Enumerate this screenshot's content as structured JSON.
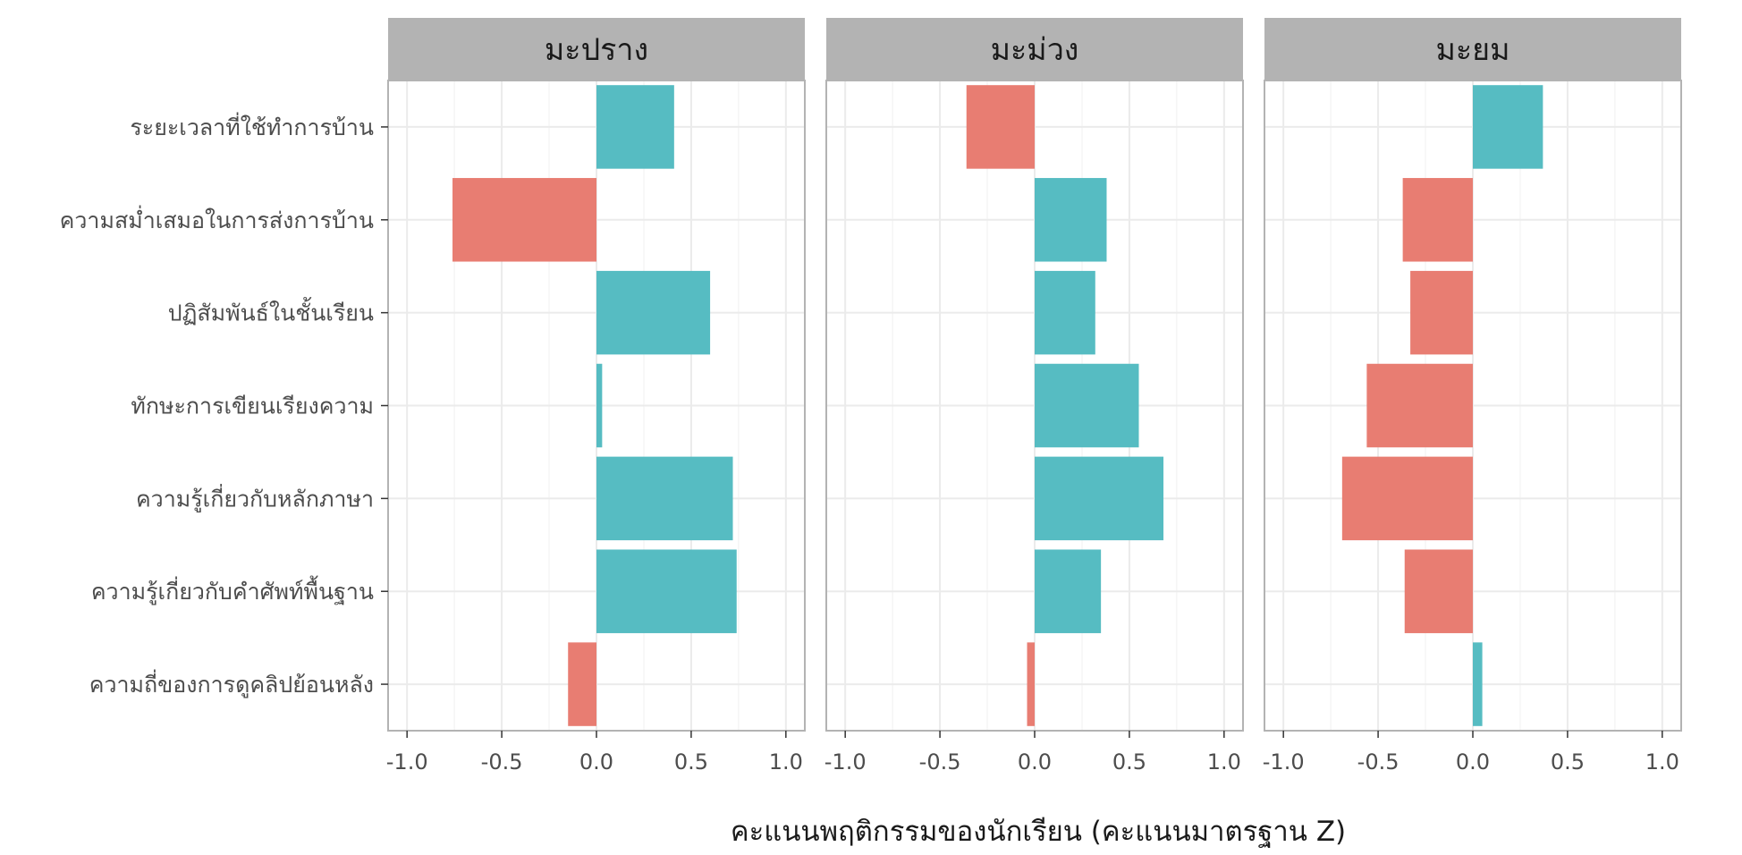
{
  "chart_data": {
    "type": "bar",
    "orientation": "horizontal",
    "facets": [
      "มะปราง",
      "มะม่วง",
      "มะยม"
    ],
    "categories": [
      "ระยะเวลาที่ใช้ทำการบ้าน",
      "ความสม่ำเสมอในการส่งการบ้าน",
      "ปฏิสัมพันธ์ในชั้นเรียน",
      "ทักษะการเขียนเรียงความ",
      "ความรู้เกี่ยวกับหลักภาษา",
      "ความรู้เกี่ยวกับคำศัพท์พื้นฐาน",
      "ความถี่ของการดูคลิปย้อนหลัง"
    ],
    "series": [
      {
        "facet": "มะปราง",
        "values": [
          0.41,
          -0.76,
          0.6,
          0.03,
          0.72,
          0.74,
          -0.15
        ]
      },
      {
        "facet": "มะม่วง",
        "values": [
          -0.36,
          0.38,
          0.32,
          0.55,
          0.68,
          0.35,
          -0.04
        ]
      },
      {
        "facet": "มะยม",
        "values": [
          0.37,
          -0.37,
          -0.33,
          -0.56,
          -0.69,
          -0.36,
          0.05
        ]
      }
    ],
    "xlabel": "คะแนนพฤติกรรมของนักเรียน (คะแนนมาตรฐาน Z)",
    "ylabel": "",
    "xlim": [
      -1.1,
      1.1
    ],
    "xticks": [
      -1.0,
      -0.5,
      0.0,
      0.5,
      1.0
    ],
    "xtick_labels": [
      "-1.0",
      "-0.5",
      "0.0",
      "0.5",
      "1.0"
    ],
    "grid": true,
    "colors": {
      "negative": "#E87D72",
      "positive": "#56BCC2",
      "strip_bg": "#B3B3B3",
      "grid": "#EBEBEB",
      "panel_border": "#B3B3B3"
    }
  }
}
